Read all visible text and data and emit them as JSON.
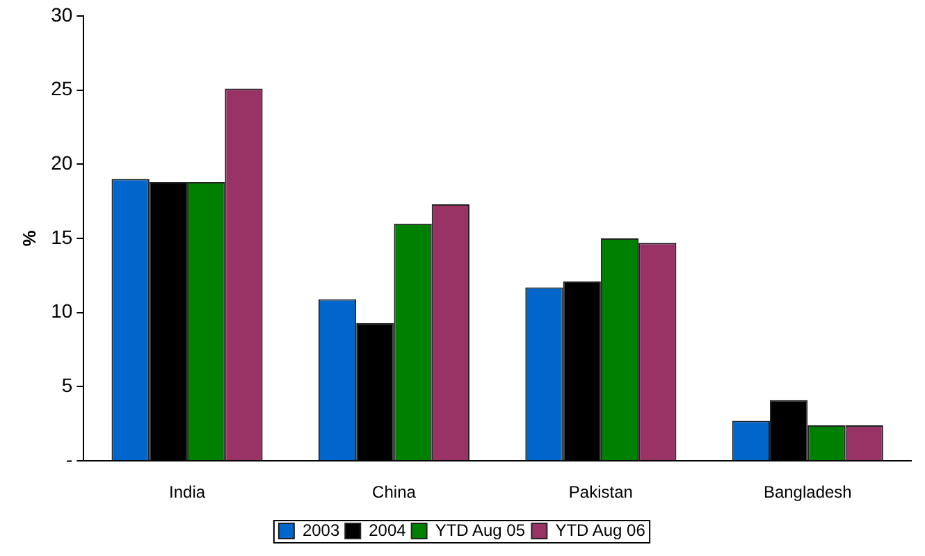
{
  "chart_data": {
    "type": "bar",
    "ylabel": "%",
    "categories": [
      "India",
      "China",
      "Pakistan",
      "Bangladesh"
    ],
    "series": [
      {
        "name": "2003",
        "color": "#0066cc",
        "values": [
          19.0,
          10.9,
          11.7,
          2.7
        ]
      },
      {
        "name": "2004",
        "color": "#000000",
        "values": [
          18.8,
          9.3,
          12.1,
          4.1
        ]
      },
      {
        "name": "YTD Aug 05",
        "color": "#008000",
        "values": [
          18.8,
          16.0,
          15.0,
          2.4
        ]
      },
      {
        "name": "YTD Aug 06",
        "color": "#993366",
        "values": [
          25.1,
          17.3,
          14.7,
          2.4
        ]
      }
    ],
    "ylim": [
      0,
      30
    ],
    "yticks": [
      {
        "value": 0,
        "label": "-"
      },
      5,
      10,
      15,
      20,
      25,
      30
    ],
    "grid": false,
    "legend": "bottom"
  }
}
